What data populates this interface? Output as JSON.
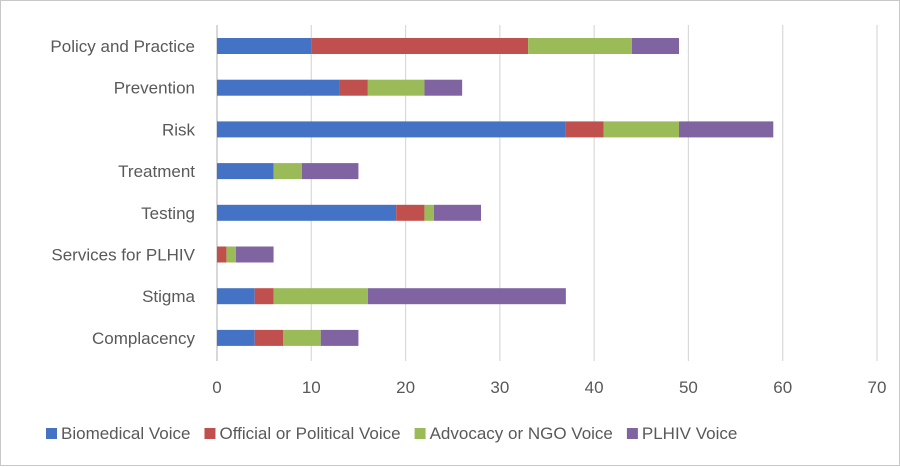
{
  "chart_data": {
    "type": "bar",
    "orientation": "horizontal",
    "stacked": true,
    "title": "",
    "xlabel": "",
    "ylabel": "",
    "categories": [
      "Policy and Practice",
      "Prevention",
      "Risk",
      "Treatment",
      "Testing",
      "Services for PLHIV",
      "Stigma",
      "Complacency"
    ],
    "series": [
      {
        "name": "Biomedical Voice",
        "color": "#4472c4",
        "values": [
          10,
          13,
          37,
          6,
          19,
          0,
          4,
          4
        ]
      },
      {
        "name": "Official or Political Voice",
        "color": "#c0504d",
        "values": [
          23,
          3,
          4,
          0,
          3,
          1,
          2,
          3
        ]
      },
      {
        "name": "Advocacy or NGO Voice",
        "color": "#9bbb59",
        "values": [
          11,
          6,
          8,
          3,
          1,
          1,
          10,
          4
        ]
      },
      {
        "name": "PLHIV Voice",
        "color": "#8064a2",
        "values": [
          5,
          4,
          10,
          6,
          5,
          4,
          21,
          4
        ]
      }
    ],
    "xlim": [
      0,
      70
    ],
    "xticks": [
      "0",
      "10",
      "20",
      "30",
      "40",
      "50",
      "60",
      "70"
    ],
    "grid": true,
    "legend_position": "bottom"
  }
}
